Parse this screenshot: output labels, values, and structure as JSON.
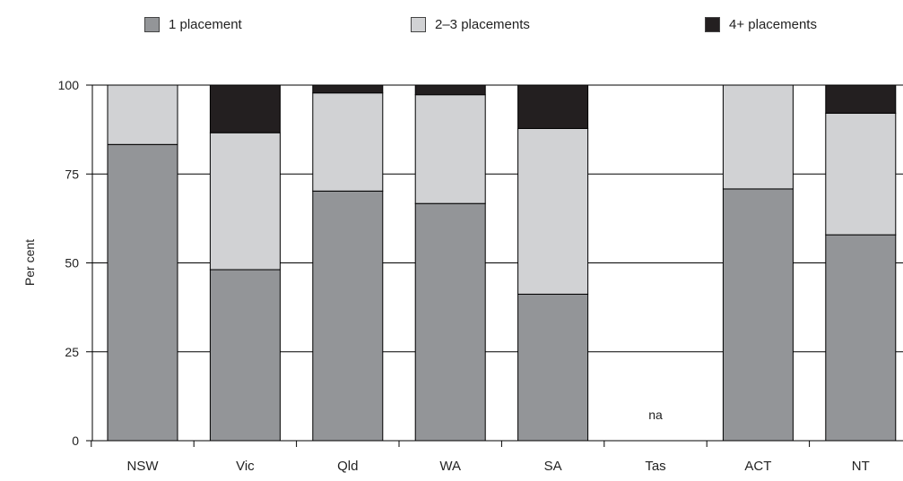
{
  "chart_data": {
    "type": "bar",
    "stacked": true,
    "ylabel": "Per cent",
    "xlabel": "",
    "ylim": [
      0,
      100
    ],
    "yticks": [
      0,
      25,
      50,
      75,
      100
    ],
    "grid": true,
    "legend_position": "top",
    "categories": [
      "NSW",
      "Vic",
      "Qld",
      "WA",
      "SA",
      "Tas",
      "ACT",
      "NT"
    ],
    "series": [
      {
        "name": "1 placement",
        "color": "#939598",
        "values": [
          83.3,
          48.1,
          70.2,
          66.7,
          41.2,
          null,
          70.8,
          57.9
        ]
      },
      {
        "name": "2–3 placements",
        "color": "#d1d2d4",
        "values": [
          16.7,
          38.5,
          27.6,
          30.6,
          46.6,
          null,
          29.2,
          34.2
        ]
      },
      {
        "name": "4+ placements",
        "color": "#231f20",
        "values": [
          0,
          13.4,
          2.2,
          2.7,
          12.2,
          null,
          0,
          7.9
        ]
      }
    ],
    "annotations": [
      {
        "category": "Tas",
        "text": "na"
      }
    ]
  }
}
